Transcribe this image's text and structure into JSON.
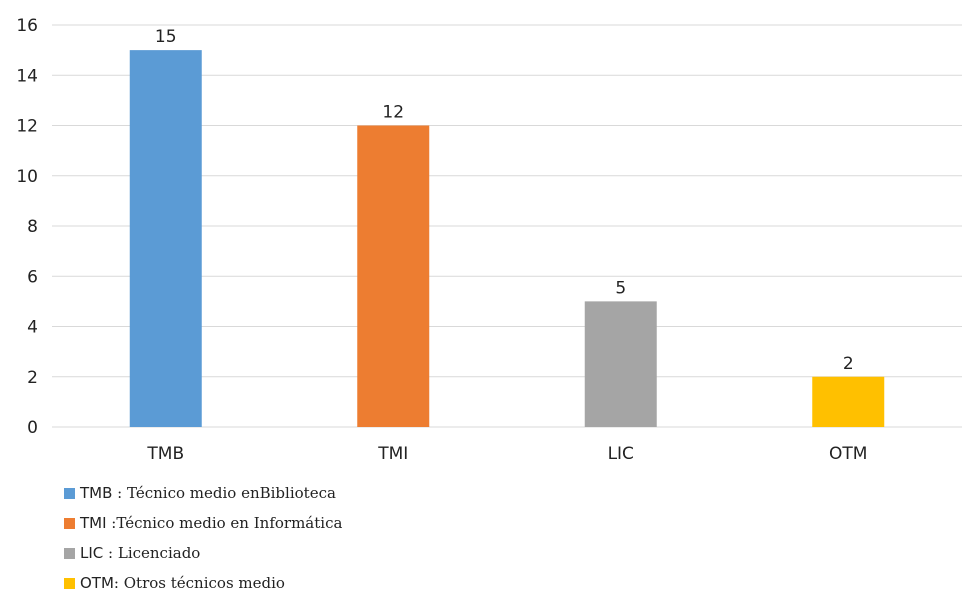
{
  "chart_data": {
    "type": "bar",
    "title": "",
    "xlabel": "",
    "ylabel": "",
    "categories": [
      "TMB",
      "TMI",
      "LIC",
      "OTM"
    ],
    "values": [
      15,
      12,
      5,
      2
    ],
    "data_labels": [
      "15",
      "12",
      "5",
      "2"
    ],
    "colors": [
      "#5B9BD5",
      "#ED7D31",
      "#A5A5A5",
      "#FFC000"
    ],
    "ylim": [
      0,
      16
    ],
    "yticks": [
      0,
      2,
      4,
      6,
      8,
      10,
      12,
      14,
      16
    ],
    "ytick_labels": [
      "0",
      "2",
      "4",
      "6",
      "8",
      "10",
      "12",
      "14",
      "16"
    ],
    "grid": true,
    "grid_color": "#D9D9D9",
    "legend_placement": "bottom-left",
    "legend": [
      {
        "code": "TMB",
        "sep": " : ",
        "description": "Técnico medio enBiblioteca",
        "color": "#5B9BD5"
      },
      {
        "code": "TMI",
        "sep": " :",
        "description": "Técnico medio en Informática",
        "color": "#ED7D31"
      },
      {
        "code": "LIC",
        "sep": " : ",
        "description": "Licenciado",
        "color": "#A5A5A5"
      },
      {
        "code": "OTM",
        "sep": ": ",
        "description": "Otros técnicos medio",
        "color": "#FFC000"
      }
    ]
  }
}
